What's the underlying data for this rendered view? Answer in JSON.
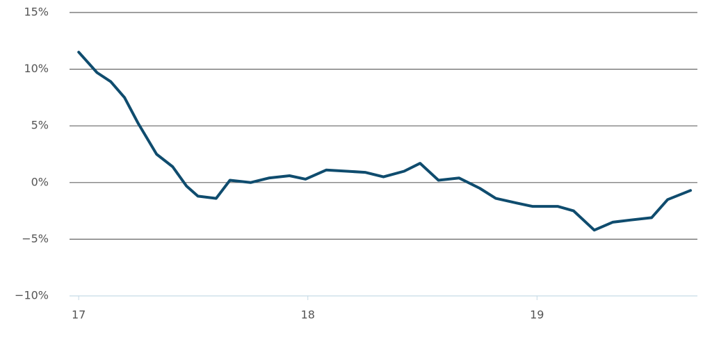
{
  "chart_data": {
    "type": "line",
    "x": [
      17.0,
      17.08,
      17.14,
      17.2,
      17.26,
      17.34,
      17.41,
      17.47,
      17.52,
      17.6,
      17.66,
      17.75,
      17.83,
      17.92,
      17.99,
      18.08,
      18.17,
      18.25,
      18.33,
      18.42,
      18.49,
      18.57,
      18.66,
      18.75,
      18.82,
      18.91,
      18.98,
      19.09,
      19.16,
      19.25,
      19.33,
      19.41,
      19.5,
      19.57,
      19.67
    ],
    "values": [
      11.5,
      9.7,
      8.9,
      7.5,
      5.2,
      2.5,
      1.4,
      -0.3,
      -1.2,
      -1.4,
      0.2,
      0.0,
      0.4,
      0.6,
      0.3,
      1.1,
      1.0,
      0.9,
      0.5,
      1.0,
      1.7,
      0.2,
      0.4,
      -0.5,
      -1.4,
      -1.8,
      -2.1,
      -2.1,
      -2.5,
      -4.2,
      -3.5,
      -3.3,
      -3.1,
      -1.5,
      -0.7
    ],
    "color": "#0f4c6e",
    "xlim": [
      16.96,
      19.7
    ],
    "xticks": [
      17,
      18,
      19
    ],
    "ylim": [
      -10,
      15
    ],
    "yticks": [
      {
        "value": -10,
        "label": "−10%"
      },
      {
        "value": -5,
        "label": "−5%"
      },
      {
        "value": 0,
        "label": "0%"
      },
      {
        "value": 5,
        "label": "5%"
      },
      {
        "value": 10,
        "label": "10%"
      },
      {
        "value": 15,
        "label": "15%"
      }
    ],
    "grid": true
  }
}
